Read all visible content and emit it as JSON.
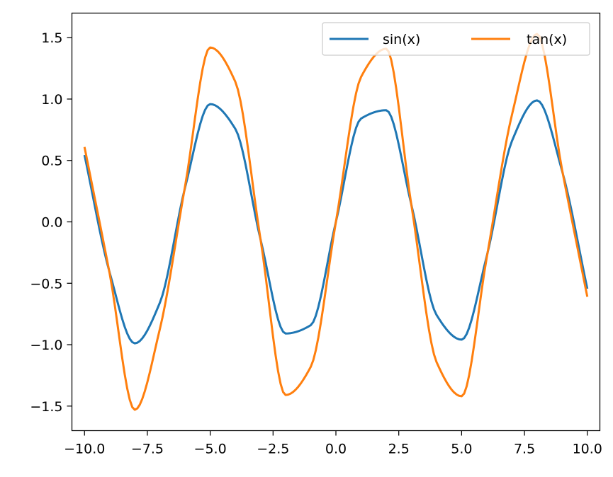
{
  "chart_data": {
    "type": "line",
    "xlim": [
      -10.5,
      10.5
    ],
    "ylim": [
      -1.7,
      1.7
    ],
    "xticks": [
      -10.0,
      -7.5,
      -5.0,
      -2.5,
      0.0,
      2.5,
      5.0,
      7.5,
      10.0
    ],
    "xtick_labels": [
      "−10.0",
      "−7.5",
      "−5.0",
      "−2.5",
      "0.0",
      "2.5",
      "5.0",
      "7.5",
      "10.0"
    ],
    "yticks": [
      -1.5,
      -1.0,
      -0.5,
      0.0,
      0.5,
      1.0,
      1.5
    ],
    "ytick_labels": [
      "−1.5",
      "−1.0",
      "−0.5",
      "0.0",
      "0.5",
      "1.0",
      "1.5"
    ],
    "grid": false,
    "legend": {
      "placement": "top-right",
      "columns": 2
    },
    "series": [
      {
        "name": "sin(x)",
        "color": "#1f77b4",
        "x": [
          -10.0,
          -9.0,
          -8.0,
          -7.0,
          -6.0,
          -5.0,
          -4.0,
          -3.0,
          -2.0,
          -1.0,
          0.0,
          1.0,
          2.0,
          3.0,
          4.0,
          5.0,
          6.0,
          7.0,
          8.0,
          9.0,
          10.0
        ],
        "y": [
          0.544,
          -0.412,
          -0.989,
          -0.657,
          0.279,
          0.959,
          0.757,
          -0.141,
          -0.909,
          -0.841,
          0.0,
          0.841,
          0.909,
          0.141,
          -0.757,
          -0.959,
          -0.279,
          0.657,
          0.989,
          0.412,
          -0.544
        ]
      },
      {
        "name": "tan(x)",
        "color": "#ff7f0e",
        "x": [
          -10.0,
          -9.0,
          -8.0,
          -7.0,
          -6.0,
          -5.0,
          -4.0,
          -3.0,
          -2.0,
          -1.0,
          0.0,
          1.0,
          2.0,
          3.0,
          4.0,
          5.0,
          6.0,
          7.0,
          8.0,
          9.0,
          10.0
        ],
        "y": [
          0.61,
          -0.42,
          -1.53,
          -0.87,
          0.29,
          1.42,
          1.14,
          -0.14,
          -1.41,
          -1.18,
          0.0,
          1.18,
          1.41,
          0.14,
          -1.14,
          -1.42,
          -0.29,
          0.87,
          1.53,
          0.42,
          -0.61
        ]
      }
    ]
  }
}
